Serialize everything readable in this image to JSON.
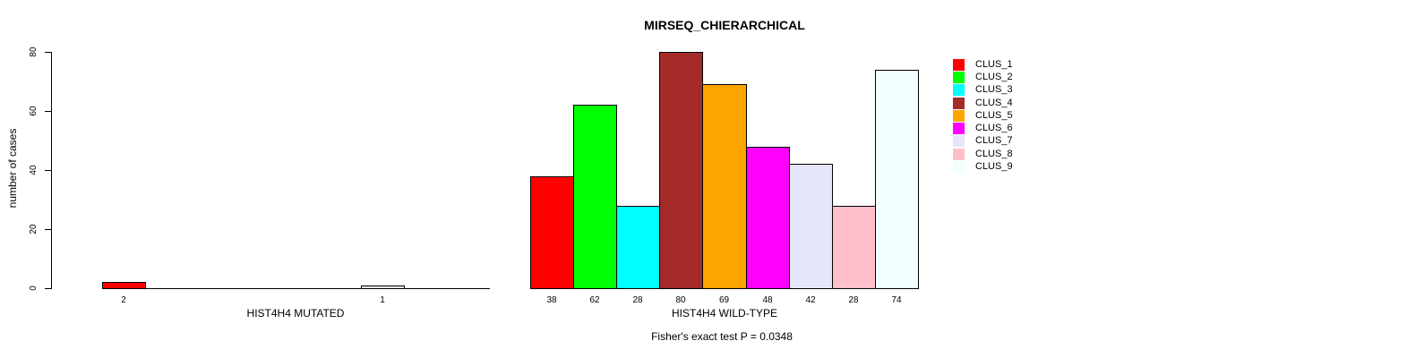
{
  "chart_data": {
    "type": "bar",
    "title": "MIRSEQ_CHIERARCHICAL",
    "ylabel": "number of cases",
    "xlabel": "",
    "ylim": [
      0,
      80
    ],
    "yticks": [
      0,
      20,
      40,
      60,
      80
    ],
    "grid": false,
    "legend_position": "right",
    "categories": [
      "CLUS_1",
      "CLUS_2",
      "CLUS_3",
      "CLUS_4",
      "CLUS_5",
      "CLUS_6",
      "CLUS_7",
      "CLUS_8",
      "CLUS_9"
    ],
    "colors": [
      "#FF0000",
      "#00FF00",
      "#00FFFF",
      "#A52A2A",
      "#FFA500",
      "#FF00FF",
      "#E6E6FA",
      "#FFC0CB",
      "#F0FFFF"
    ],
    "bar_border_color": "#000000",
    "groups": [
      {
        "label": "HIST4H4 MUTATED",
        "values": [
          2,
          0,
          0,
          0,
          0,
          0,
          1,
          0,
          0
        ],
        "bar_labels": [
          "2",
          "",
          "",
          "",
          "",
          "",
          "1",
          "",
          ""
        ]
      },
      {
        "label": "HIST4H4 WILD-TYPE",
        "values": [
          38,
          62,
          28,
          80,
          69,
          48,
          42,
          28,
          74
        ],
        "bar_labels": [
          "38",
          "62",
          "28",
          "80",
          "69",
          "48",
          "42",
          "28",
          "74"
        ]
      }
    ],
    "annotation": "Fisher's exact test P = 0.0348"
  }
}
